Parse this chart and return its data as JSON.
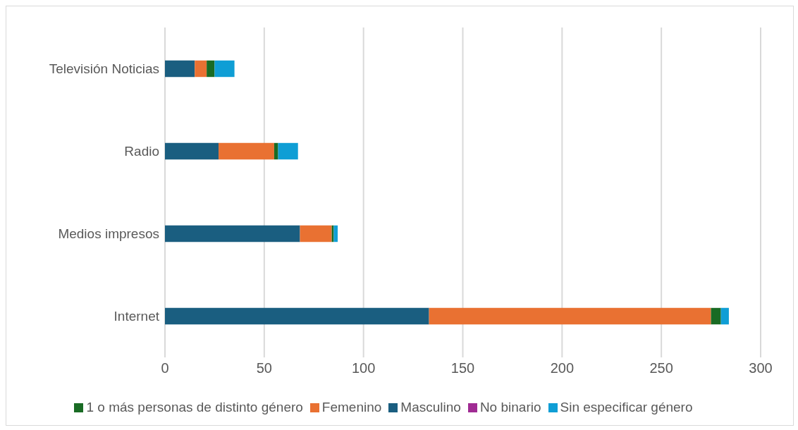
{
  "chart_data": {
    "type": "bar",
    "orientation": "horizontal",
    "stacked": true,
    "categories": [
      "Televisión Noticias",
      "Radio",
      "Medios impresos",
      "Internet"
    ],
    "series": [
      {
        "name": "Masculino",
        "color": "#1a5e80",
        "values": [
          15,
          27,
          68,
          133
        ]
      },
      {
        "name": "Femenino",
        "color": "#e97132",
        "values": [
          6,
          28,
          16,
          142
        ]
      },
      {
        "name": "1 o más personas de distinto género",
        "color": "#196b24",
        "values": [
          4,
          2,
          1,
          5
        ]
      },
      {
        "name": "Sin especificar género",
        "color": "#0f9ed5",
        "values": [
          10,
          10,
          2,
          4
        ]
      },
      {
        "name": "No binario",
        "color": "#a02b93",
        "values": [
          0,
          0,
          0,
          0
        ]
      }
    ],
    "xlim": [
      0,
      300
    ],
    "xticks": [
      0,
      50,
      100,
      150,
      200,
      250,
      300
    ],
    "grid": "x",
    "legend": "bottom"
  }
}
